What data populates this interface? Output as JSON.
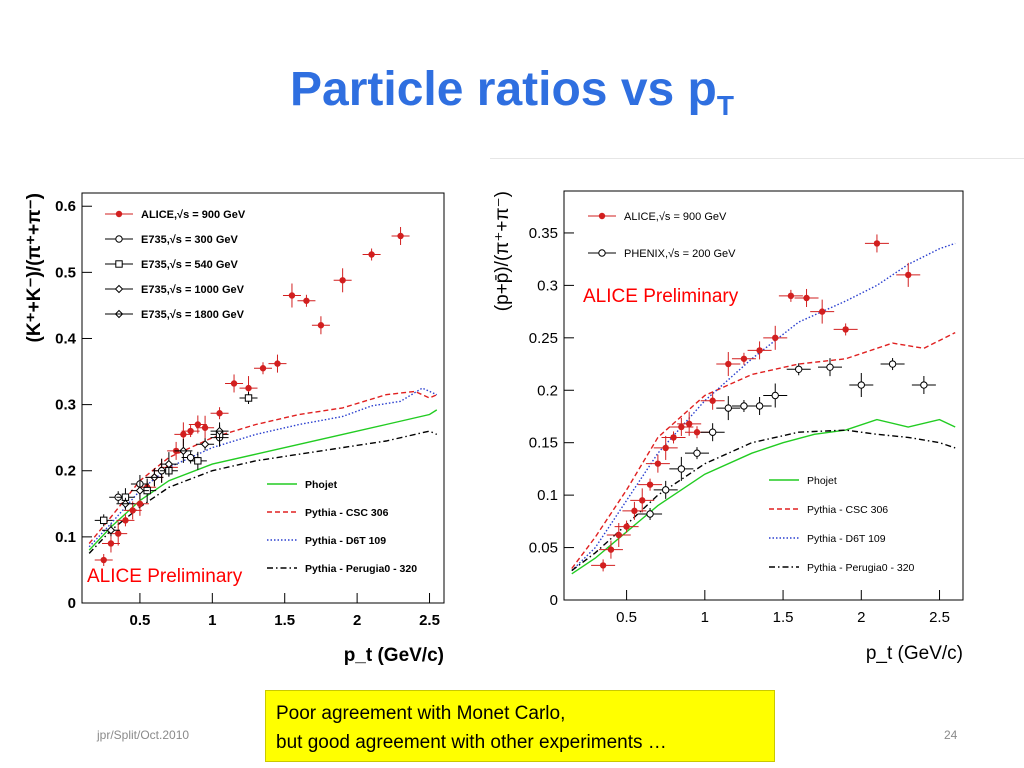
{
  "slide": {
    "title_main": "Particle ratios vs p",
    "title_sub": "T",
    "note_line1": "Poor agreement with Monet Carlo,",
    "note_line2": "but good agreement with other experiments …",
    "footer_left": "jpr/Split/Oct.2010",
    "page_number": "24",
    "colors": {
      "title": "#2f6fe0",
      "note_bg": "#ffff00",
      "prelim": "#ff0000"
    }
  },
  "chart_data": [
    {
      "type": "scatter",
      "xlabel": "p_t (GeV/c)",
      "ylabel": "(K⁺+K⁻)/(π⁺+π⁻)",
      "xlim": [
        0.1,
        2.6
      ],
      "ylim": [
        0,
        0.62
      ],
      "xticks": [
        "0.5",
        "1",
        "1.5",
        "2",
        "2.5"
      ],
      "yticks": [
        "0",
        "0.1",
        "0.2",
        "0.3",
        "0.4",
        "0.5",
        "0.6"
      ],
      "annotation": "ALICE Preliminary",
      "legend_position": "top-left",
      "series": [
        {
          "name": "ALICE,√s = 900 GeV",
          "style": "filled-circle",
          "color": "#d21f1f",
          "x": [
            0.25,
            0.3,
            0.35,
            0.4,
            0.45,
            0.5,
            0.55,
            0.6,
            0.65,
            0.7,
            0.75,
            0.8,
            0.85,
            0.9,
            0.95,
            1.05,
            1.15,
            1.25,
            1.35,
            1.45,
            1.55,
            1.65,
            1.75,
            1.9,
            2.1,
            2.3
          ],
          "y": [
            0.065,
            0.09,
            0.105,
            0.125,
            0.14,
            0.15,
            0.175,
            0.19,
            0.2,
            0.205,
            0.23,
            0.255,
            0.26,
            0.27,
            0.265,
            0.287,
            0.332,
            0.325,
            0.355,
            0.362,
            0.465,
            0.457,
            0.42,
            0.488,
            0.527,
            0.555
          ]
        },
        {
          "name": "E735,√s = 300 GeV",
          "style": "open-circle",
          "color": "#000000",
          "x": [
            0.35,
            0.5,
            0.65,
            0.85,
            1.05
          ],
          "y": [
            0.16,
            0.18,
            0.2,
            0.22,
            0.25
          ]
        },
        {
          "name": "E735,√s = 540 GeV",
          "style": "open-square",
          "color": "#000000",
          "x": [
            0.25,
            0.4,
            0.55,
            0.7,
            0.9,
            1.05,
            1.25
          ],
          "y": [
            0.125,
            0.16,
            0.17,
            0.2,
            0.215,
            0.255,
            0.31
          ]
        },
        {
          "name": "E735,√s = 1000 GeV",
          "style": "diamond",
          "color": "#000000",
          "x": [
            0.3,
            0.5,
            0.7,
            0.95
          ],
          "y": [
            0.11,
            0.17,
            0.21,
            0.24
          ]
        },
        {
          "name": "E735,√s = 1800 GeV",
          "style": "diamond-cross",
          "color": "#000000",
          "x": [
            0.4,
            0.6,
            0.8,
            1.05
          ],
          "y": [
            0.15,
            0.19,
            0.23,
            0.26
          ]
        },
        {
          "name": "Phojet",
          "style": "line-solid",
          "color": "#22cc22",
          "x": [
            0.15,
            0.3,
            0.5,
            0.7,
            1.0,
            1.3,
            1.6,
            1.9,
            2.2,
            2.5,
            2.55
          ],
          "y": [
            0.08,
            0.115,
            0.155,
            0.185,
            0.21,
            0.225,
            0.24,
            0.255,
            0.27,
            0.285,
            0.292
          ]
        },
        {
          "name": "Pythia - CSC 306",
          "style": "line-dashed",
          "color": "#e02020",
          "x": [
            0.15,
            0.3,
            0.5,
            0.7,
            1.0,
            1.3,
            1.6,
            1.9,
            2.2,
            2.4,
            2.5,
            2.55
          ],
          "y": [
            0.09,
            0.13,
            0.185,
            0.22,
            0.25,
            0.27,
            0.285,
            0.295,
            0.315,
            0.32,
            0.31,
            0.315
          ]
        },
        {
          "name": "Pythia - D6T 109",
          "style": "line-dotted",
          "color": "#2a3fcf",
          "x": [
            0.15,
            0.3,
            0.5,
            0.7,
            1.0,
            1.3,
            1.6,
            1.9,
            2.1,
            2.3,
            2.45,
            2.55
          ],
          "y": [
            0.085,
            0.12,
            0.17,
            0.205,
            0.235,
            0.255,
            0.27,
            0.282,
            0.298,
            0.305,
            0.325,
            0.315
          ]
        },
        {
          "name": "Pythia - Perugia0 - 320",
          "style": "line-dashdot",
          "color": "#000000",
          "x": [
            0.15,
            0.3,
            0.5,
            0.7,
            1.0,
            1.3,
            1.6,
            1.9,
            2.2,
            2.5,
            2.55
          ],
          "y": [
            0.075,
            0.11,
            0.145,
            0.175,
            0.2,
            0.215,
            0.225,
            0.235,
            0.245,
            0.26,
            0.255
          ]
        }
      ]
    },
    {
      "type": "scatter",
      "xlabel": "p_t (GeV/c)",
      "ylabel": "(p+p̄)/(π⁺+π⁻)",
      "xlim": [
        0.1,
        2.65
      ],
      "ylim": [
        0,
        0.39
      ],
      "xticks": [
        "0.5",
        "1",
        "1.5",
        "2",
        "2.5"
      ],
      "yticks": [
        "0",
        "0.05",
        "0.1",
        "0.15",
        "0.2",
        "0.25",
        "0.3",
        "0.35"
      ],
      "annotation": "ALICE Preliminary",
      "legend_position": "top-left",
      "series": [
        {
          "name": "ALICE,√s = 900 GeV",
          "style": "filled-circle",
          "color": "#d21f1f",
          "x": [
            0.35,
            0.4,
            0.45,
            0.5,
            0.55,
            0.6,
            0.65,
            0.7,
            0.75,
            0.8,
            0.85,
            0.9,
            0.95,
            1.05,
            1.15,
            1.25,
            1.35,
            1.45,
            1.55,
            1.65,
            1.75,
            1.9,
            2.1,
            2.3
          ],
          "y": [
            0.033,
            0.048,
            0.062,
            0.07,
            0.085,
            0.095,
            0.11,
            0.13,
            0.145,
            0.155,
            0.165,
            0.168,
            0.16,
            0.19,
            0.225,
            0.23,
            0.238,
            0.25,
            0.29,
            0.288,
            0.275,
            0.258,
            0.34,
            0.31
          ]
        },
        {
          "name": "PHENIX,√s = 200 GeV",
          "style": "open-circle",
          "color": "#000000",
          "x": [
            0.65,
            0.75,
            0.85,
            0.95,
            1.05,
            1.15,
            1.25,
            1.35,
            1.45,
            1.6,
            1.8,
            2.0,
            2.2,
            2.4
          ],
          "y": [
            0.082,
            0.105,
            0.125,
            0.14,
            0.16,
            0.183,
            0.185,
            0.185,
            0.195,
            0.22,
            0.222,
            0.205,
            0.225,
            0.205
          ]
        },
        {
          "name": "Phojet",
          "style": "line-solid",
          "color": "#22cc22",
          "x": [
            0.15,
            0.3,
            0.5,
            0.7,
            1.0,
            1.3,
            1.5,
            1.7,
            1.9,
            2.1,
            2.3,
            2.5,
            2.6
          ],
          "y": [
            0.025,
            0.04,
            0.065,
            0.09,
            0.12,
            0.14,
            0.15,
            0.158,
            0.162,
            0.172,
            0.165,
            0.172,
            0.165
          ]
        },
        {
          "name": "Pythia - CSC 306",
          "style": "line-dashed",
          "color": "#e02020",
          "x": [
            0.15,
            0.3,
            0.5,
            0.7,
            1.0,
            1.3,
            1.6,
            1.9,
            2.2,
            2.4,
            2.6
          ],
          "y": [
            0.03,
            0.06,
            0.105,
            0.155,
            0.195,
            0.215,
            0.225,
            0.23,
            0.245,
            0.24,
            0.255
          ]
        },
        {
          "name": "Pythia - D6T 109",
          "style": "line-dotted",
          "color": "#2a3fcf",
          "x": [
            0.15,
            0.3,
            0.5,
            0.7,
            1.0,
            1.3,
            1.6,
            1.9,
            2.1,
            2.3,
            2.5,
            2.6
          ],
          "y": [
            0.028,
            0.05,
            0.095,
            0.14,
            0.19,
            0.23,
            0.265,
            0.285,
            0.3,
            0.32,
            0.335,
            0.34
          ]
        },
        {
          "name": "Pythia - Perugia0 - 320",
          "style": "line-dashdot",
          "color": "#000000",
          "x": [
            0.15,
            0.3,
            0.5,
            0.7,
            1.0,
            1.3,
            1.6,
            1.9,
            2.1,
            2.3,
            2.5,
            2.6
          ],
          "y": [
            0.028,
            0.045,
            0.072,
            0.1,
            0.13,
            0.15,
            0.16,
            0.162,
            0.158,
            0.155,
            0.15,
            0.145
          ]
        }
      ]
    }
  ]
}
